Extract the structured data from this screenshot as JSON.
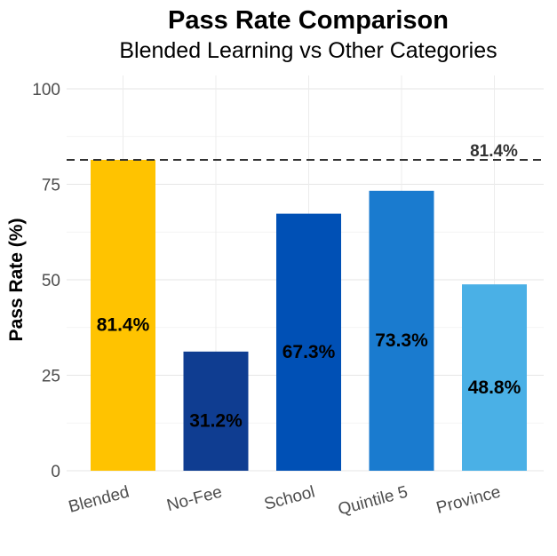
{
  "chart_data": {
    "type": "bar",
    "title": "Pass Rate Comparison",
    "subtitle": "Blended Learning vs Other Categories",
    "xlabel": "",
    "ylabel": "Pass Rate (%)",
    "ylim": [
      0,
      100
    ],
    "yticks": [
      0,
      25,
      50,
      75,
      100
    ],
    "grid": true,
    "categories": [
      "Blended",
      "No-Fee",
      "School",
      "Quintile 5",
      "Province"
    ],
    "values": [
      81.4,
      31.2,
      67.3,
      73.3,
      48.8
    ],
    "data_labels": [
      "81.4%",
      "31.2%",
      "67.3%",
      "73.3%",
      "48.8%"
    ],
    "colors": [
      "#FFC300",
      "#0F3D91",
      "#0050B5",
      "#1A7BCF",
      "#4AB0E6"
    ],
    "reference_line": {
      "value": 81.4,
      "label": "81.4%",
      "style": "dashed",
      "color": "#333333"
    }
  }
}
